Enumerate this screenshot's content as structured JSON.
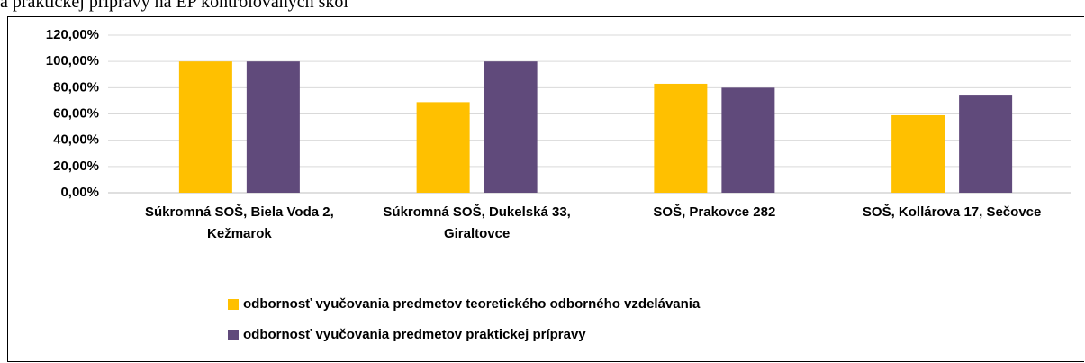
{
  "caption": "a praktickej prípravy na EP kontrolovaných škôl",
  "chart_data": {
    "type": "bar",
    "categories": [
      "Súkromná SOŠ, Biela Voda 2, Kežmarok",
      "Súkromná SOŠ, Dukelská 33, Giraltovce",
      "SOŠ, Prakovce 282",
      "SOŠ, Kollárova 17, Sečovce"
    ],
    "series": [
      {
        "name": "odbornosť vyučovania predmetov teoretického odborného  vzdelávania",
        "color": "#ffc000",
        "values": [
          100,
          69,
          83,
          59
        ]
      },
      {
        "name": "odbornosť vyučovania predmetov praktickej prípravy",
        "color": "#604a7b",
        "values": [
          100,
          100,
          80,
          74
        ]
      }
    ],
    "ylim": [
      0,
      120
    ],
    "yticks": [
      {
        "value": 0,
        "label": "0,00%"
      },
      {
        "value": 20,
        "label": "20,00%"
      },
      {
        "value": 40,
        "label": "40,00%"
      },
      {
        "value": 60,
        "label": "60,00%"
      },
      {
        "value": 80,
        "label": "80,00%"
      },
      {
        "value": 100,
        "label": "100,00%"
      },
      {
        "value": 120,
        "label": "120,00%"
      }
    ],
    "grid": true,
    "legend": "bottom"
  }
}
